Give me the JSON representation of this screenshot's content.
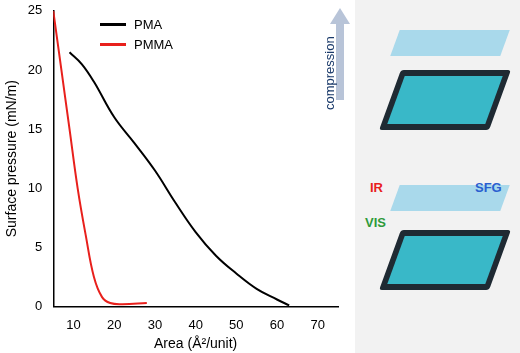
{
  "chart_data": {
    "type": "line",
    "x_label": "Area (Å²/unit)",
    "y_label": "Surface pressure (mN/m)",
    "xlim": [
      5,
      75
    ],
    "xticks": [
      10,
      20,
      30,
      40,
      50,
      60,
      70
    ],
    "ylim": [
      0,
      25
    ],
    "yticks": [
      0,
      5,
      10,
      15,
      20,
      25
    ],
    "grid": false,
    "legend": "top-left",
    "series": [
      {
        "name": "PMA",
        "color": "#000000",
        "x": [
          9,
          12,
          15,
          20,
          25,
          30,
          35,
          40,
          45,
          50,
          55,
          60,
          63
        ],
        "values": [
          21.5,
          20.5,
          19,
          16,
          13.8,
          11.5,
          8.8,
          6.3,
          4.3,
          2.8,
          1.5,
          0.6,
          0.1
        ]
      },
      {
        "name": "PMMA",
        "color": "#e8201c",
        "x": [
          5,
          7,
          9,
          11,
          13,
          15,
          17,
          19,
          22,
          28
        ],
        "values": [
          25,
          20,
          15,
          10,
          6,
          2.5,
          0.8,
          0.3,
          0.2,
          0.3
        ]
      }
    ],
    "annotations": [
      {
        "text": "IR",
        "color": "#e8201c"
      },
      {
        "text": "VIS",
        "color": "#2e9a3a"
      },
      {
        "text": "SFG",
        "color": "#2a5fd0"
      },
      {
        "text": "compression",
        "color": "#1a3a6a"
      }
    ]
  }
}
